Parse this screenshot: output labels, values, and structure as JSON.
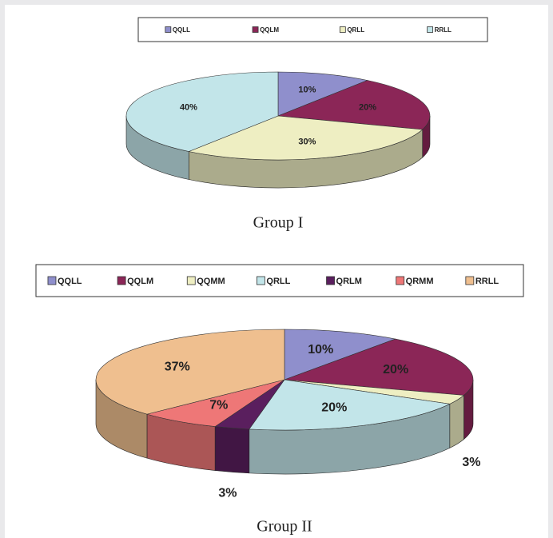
{
  "chart_data": [
    {
      "type": "pie3d",
      "caption": "Group I",
      "categories": [
        "QQLL",
        "QQLM",
        "QRLL",
        "RRLL"
      ],
      "values": [
        10,
        20,
        30,
        40
      ],
      "value_labels": [
        "10%",
        "20%",
        "30%",
        "40%"
      ],
      "colors": [
        "#8f8fcc",
        "#8b2657",
        "#eeeec2",
        "#c2e5e9"
      ]
    },
    {
      "type": "pie3d",
      "caption": "Group II",
      "categories": [
        "QQLL",
        "QQLM",
        "QQMM",
        "QRLL",
        "QRLM",
        "QRMM",
        "RRLL"
      ],
      "values": [
        10,
        20,
        3,
        20,
        3,
        7,
        37
      ],
      "value_labels": [
        "10%",
        "20%",
        "3%",
        "20%",
        "3%",
        "7%",
        "37%"
      ],
      "colors": [
        "#8f8fcc",
        "#8b2657",
        "#eeeec2",
        "#c2e5e9",
        "#5a1f5e",
        "#ee7777",
        "#efbf8f"
      ]
    }
  ]
}
